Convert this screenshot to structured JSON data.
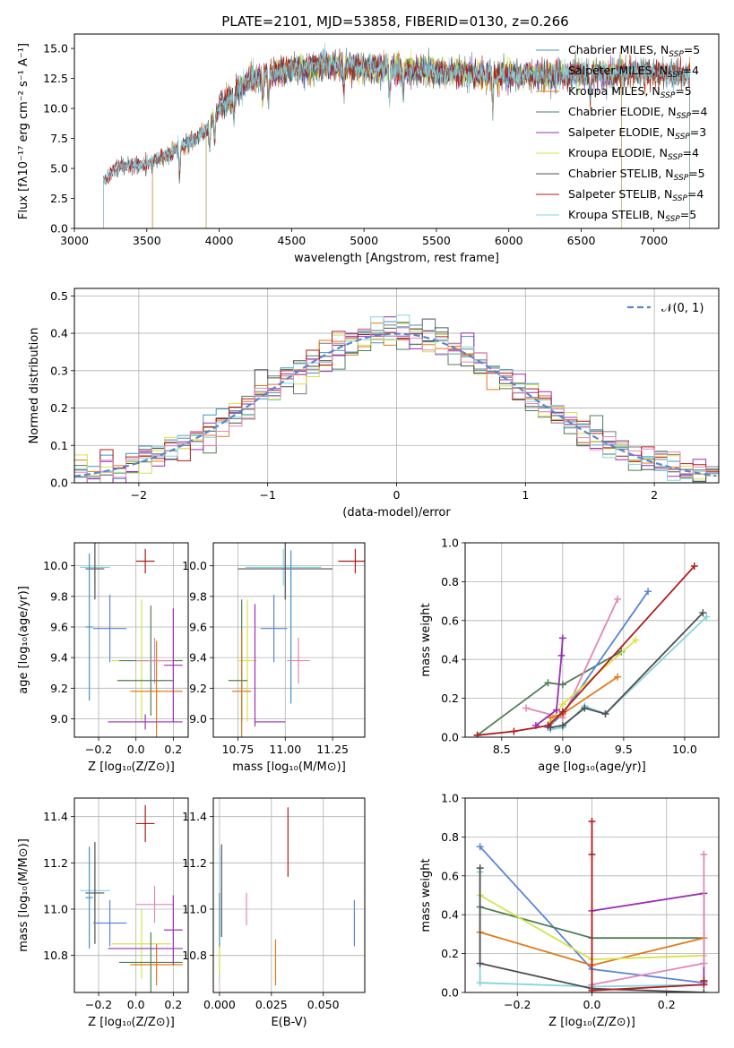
{
  "figure_title": "PLATE=2101, MJD=53858, FIBERID=0130, z=0.266",
  "colors": {
    "Chabrier MILES": "#4a90c2",
    "Salpeter MILES": "#7a7a7a",
    "Kroupa MILES": "#e07b1a",
    "Chabrier ELODIE": "#4f7f55",
    "Salpeter ELODIE": "#9b2fb5",
    "Kroupa ELODIE": "#d6e34a",
    "Chabrier STELIB": "#505050",
    "Salpeter STELIB": "#b01c1c",
    "Kroupa STELIB": "#86d3e0",
    "pink": "#e088b6",
    "blue": "#5b85d8",
    "gaussian": "#5a86c9"
  },
  "chart_data": [
    {
      "id": "spectrum",
      "type": "line",
      "title": "PLATE=2101, MJD=53858, FIBERID=0130, z=0.266",
      "xlabel": "wavelength [Angstrom, rest frame]",
      "ylabel": "Flux [fλ10⁻¹⁷ erg cm⁻² s⁻¹ A⁻¹]",
      "xlim": [
        3000,
        7450
      ],
      "ylim": [
        0,
        16.2
      ],
      "xticks": [
        3000,
        3500,
        4000,
        4500,
        5000,
        5500,
        6000,
        6500,
        7000
      ],
      "yticks": [
        0.0,
        2.5,
        5.0,
        7.5,
        10.0,
        12.5,
        15.0
      ],
      "grid": false,
      "legend_position": "top-right",
      "legend": [
        {
          "label": "Chabrier MILES, N",
          "sub": "SSP",
          "tail": "=5",
          "color": "#4a90c2"
        },
        {
          "label": "Salpeter MILES, N",
          "sub": "SSP",
          "tail": "=4",
          "color": "#7a7a7a"
        },
        {
          "label": "Kroupa MILES, N",
          "sub": "SSP",
          "tail": "=5",
          "color": "#e07b1a"
        },
        {
          "label": "Chabrier ELODIE, N",
          "sub": "SSP",
          "tail": "=4",
          "color": "#4f7f55"
        },
        {
          "label": "Salpeter ELODIE, N",
          "sub": "SSP",
          "tail": "=3",
          "color": "#9b2fb5"
        },
        {
          "label": "Kroupa ELODIE, N",
          "sub": "SSP",
          "tail": "=4",
          "color": "#d6e34a"
        },
        {
          "label": "Chabrier STELIB, N",
          "sub": "SSP",
          "tail": "=5",
          "color": "#505050"
        },
        {
          "label": "Salpeter STELIB, N",
          "sub": "SSP",
          "tail": "=4",
          "color": "#b01c1c"
        },
        {
          "label": "Kroupa STELIB, N",
          "sub": "SSP",
          "tail": "=5",
          "color": "#86d3e0"
        }
      ],
      "continuum_anchors": [
        [
          3200,
          4.0
        ],
        [
          3300,
          5.2
        ],
        [
          3500,
          5.3
        ],
        [
          3700,
          6.5
        ],
        [
          3900,
          8.0
        ],
        [
          4000,
          10.0
        ],
        [
          4200,
          12.3
        ],
        [
          4500,
          13.3
        ],
        [
          4800,
          13.6
        ],
        [
          5000,
          13.4
        ],
        [
          5300,
          13.2
        ],
        [
          5600,
          13.0
        ],
        [
          5900,
          12.8
        ],
        [
          6200,
          12.8
        ],
        [
          6600,
          12.9
        ],
        [
          6900,
          13.0
        ],
        [
          7250,
          12.8
        ]
      ],
      "series_extent": {
        "Chabrier MILES": [
          3540,
          7250
        ],
        "Salpeter MILES": [
          3540,
          7250
        ],
        "Kroupa MILES": [
          3540,
          7250
        ],
        "Chabrier ELODIE": [
          3910,
          6780
        ],
        "Salpeter ELODIE": [
          3910,
          6780
        ],
        "Kroupa ELODIE": [
          3910,
          6780
        ],
        "Chabrier STELIB": [
          3200,
          7250
        ],
        "Salpeter STELIB": [
          3200,
          7250
        ],
        "Kroupa STELIB": [
          3200,
          7250
        ]
      }
    },
    {
      "id": "residuals",
      "type": "line",
      "xlabel": "(data-model)/error",
      "ylabel": "Normed distribution",
      "xlim": [
        -2.5,
        2.5
      ],
      "ylim": [
        0,
        0.52
      ],
      "xticks": [
        -2,
        -1,
        0,
        1,
        2
      ],
      "yticks": [
        0.0,
        0.1,
        0.2,
        0.3,
        0.4,
        0.5
      ],
      "grid": true,
      "legend_position": "top-right",
      "legend": [
        {
          "label": "𝒩(0, 1)",
          "color": "#5a86c9",
          "style": "dashed"
        }
      ],
      "bin_width": 0.1,
      "gaussian": {
        "mean": 0,
        "sigma": 1
      }
    },
    {
      "id": "age_vs_Z",
      "type": "errorbar",
      "xlabel": "Z [log₁₀(Z/Z⊙)]",
      "ylabel": "age  [log₁₀(age/yr)]",
      "xlim": [
        -0.33,
        0.28
      ],
      "ylim": [
        8.88,
        10.15
      ],
      "xticks": [
        -0.2,
        0.0,
        0.2
      ],
      "xticklabels": [
        "−0.2",
        "0.0",
        "0.2"
      ],
      "yticks": [
        9.0,
        9.2,
        9.4,
        9.6,
        9.8,
        10.0
      ],
      "grid": true,
      "points": [
        {
          "x": 0.05,
          "y": 10.03,
          "xerr": 0.05,
          "yerr": 0.08,
          "color": "#b01c1c"
        },
        {
          "x": -0.22,
          "y": 9.99,
          "xerr": 0.08,
          "yerr": 0.12,
          "color": "#86d3e0"
        },
        {
          "x": -0.22,
          "y": 9.98,
          "xerr": 0.05,
          "yerr": 0.2,
          "color": "#505050"
        },
        {
          "x": -0.14,
          "y": 9.59,
          "xerr": 0.09,
          "yerr": 0.22,
          "color": "#5b85d8"
        },
        {
          "x": -0.25,
          "y": 9.6,
          "xerr": 0.02,
          "yerr": 0.48,
          "color": "#4a90c2"
        },
        {
          "x": 0.03,
          "y": 9.38,
          "xerr": 0.16,
          "yerr": 0.4,
          "color": "#d6e34a"
        },
        {
          "x": 0.08,
          "y": 9.38,
          "xerr": 0.17,
          "yerr": 0.36,
          "color": "#4f7f55"
        },
        {
          "x": 0.11,
          "y": 9.18,
          "xerr": 0.14,
          "yerr": 0.33,
          "color": "#e07b1a"
        },
        {
          "x": 0.1,
          "y": 9.38,
          "xerr": 0.1,
          "yerr": 0.15,
          "color": "#e088b6"
        },
        {
          "x": 0.2,
          "y": 9.35,
          "xerr": 0.05,
          "yerr": 0.37,
          "color": "#9b2fb5"
        },
        {
          "x": 0.05,
          "y": 8.98,
          "xerr": 0.2,
          "yerr": 0.05,
          "color": "#9b2fb5"
        },
        {
          "x": 0.05,
          "y": 9.25,
          "xerr": 0.15,
          "yerr": 0.0,
          "color": "#4f7f55"
        }
      ]
    },
    {
      "id": "age_vs_mass",
      "type": "errorbar",
      "xlabel": "mass [log₁₀(M/M⊙)]",
      "ylabel": "",
      "xlim": [
        10.62,
        11.42
      ],
      "ylim": [
        8.88,
        10.15
      ],
      "xticks": [
        10.75,
        11.0,
        11.25
      ],
      "xticklabels": [
        "10.75",
        "11.00",
        "11.25"
      ],
      "yticks": [
        9.0,
        9.2,
        9.4,
        9.6,
        9.8,
        10.0
      ],
      "grid": true,
      "points": [
        {
          "x": 11.37,
          "y": 10.03,
          "xerr": 0.09,
          "yerr": 0.08,
          "color": "#b01c1c"
        },
        {
          "x": 10.99,
          "y": 9.99,
          "xerr": 0.2,
          "yerr": 0.12,
          "color": "#86d3e0"
        },
        {
          "x": 11.0,
          "y": 9.98,
          "xerr": 0.25,
          "yerr": 0.2,
          "color": "#505050"
        },
        {
          "x": 10.94,
          "y": 9.59,
          "xerr": 0.07,
          "yerr": 0.22,
          "color": "#5b85d8"
        },
        {
          "x": 11.03,
          "y": 9.6,
          "xerr": 0.0,
          "yerr": 0.5,
          "color": "#4a90c2"
        },
        {
          "x": 10.8,
          "y": 9.38,
          "xerr": 0.05,
          "yerr": 0.4,
          "color": "#d6e34a"
        },
        {
          "x": 10.77,
          "y": 9.38,
          "xerr": 0.0,
          "yerr": 0.4,
          "color": "#4f7f55"
        },
        {
          "x": 10.77,
          "y": 9.18,
          "xerr": 0.05,
          "yerr": 0.4,
          "color": "#e07b1a"
        },
        {
          "x": 11.07,
          "y": 9.38,
          "xerr": 0.06,
          "yerr": 0.15,
          "color": "#e088b6"
        },
        {
          "x": 10.84,
          "y": 9.35,
          "xerr": 0.0,
          "yerr": 0.4,
          "color": "#9b2fb5"
        },
        {
          "x": 10.92,
          "y": 8.98,
          "xerr": 0.08,
          "yerr": 0.0,
          "color": "#9b2fb5"
        },
        {
          "x": 10.75,
          "y": 9.25,
          "xerr": 0.05,
          "yerr": 0.0,
          "color": "#4f7f55"
        }
      ]
    },
    {
      "id": "massweight_vs_age",
      "type": "line",
      "xlabel": "age  [log₁₀(age/yr)]",
      "ylabel": "mass weight",
      "xlim": [
        8.2,
        10.28
      ],
      "ylim": [
        0,
        1.0
      ],
      "xticks": [
        8.5,
        9.0,
        9.5,
        10.0
      ],
      "yticks": [
        0.0,
        0.2,
        0.4,
        0.6,
        0.8,
        1.0
      ],
      "grid": true,
      "series": [
        {
          "color": "#4f7f55",
          "x": [
            8.3,
            8.88,
            9.0,
            9.48
          ],
          "y": [
            0.01,
            0.28,
            0.27,
            0.44
          ]
        },
        {
          "color": "#5b85d8",
          "x": [
            8.88,
            9.0,
            9.7
          ],
          "y": [
            0.05,
            0.12,
            0.75
          ]
        },
        {
          "color": "#e088b6",
          "x": [
            8.7,
            9.0,
            9.45
          ],
          "y": [
            0.15,
            0.1,
            0.71
          ]
        },
        {
          "color": "#d6e34a",
          "x": [
            8.9,
            9.0,
            9.6
          ],
          "y": [
            0.08,
            0.17,
            0.5
          ]
        },
        {
          "color": "#e07b1a",
          "x": [
            8.9,
            9.0,
            9.45
          ],
          "y": [
            0.1,
            0.12,
            0.31
          ]
        },
        {
          "color": "#9b2fb5",
          "x": [
            8.78,
            8.95,
            8.99,
            9.0
          ],
          "y": [
            0.06,
            0.14,
            0.42,
            0.51
          ]
        },
        {
          "color": "#86d3e0",
          "x": [
            8.9,
            9.0,
            9.18,
            9.35,
            10.18
          ],
          "y": [
            0.04,
            0.05,
            0.16,
            0.12,
            0.62
          ]
        },
        {
          "color": "#505050",
          "x": [
            8.9,
            9.0,
            9.18,
            9.35,
            10.15
          ],
          "y": [
            0.05,
            0.06,
            0.15,
            0.12,
            0.64
          ]
        },
        {
          "color": "#b01c1c",
          "x": [
            8.3,
            8.6,
            8.88,
            9.0,
            10.08
          ],
          "y": [
            0.01,
            0.03,
            0.06,
            0.13,
            0.88
          ]
        }
      ]
    },
    {
      "id": "mass_vs_Z",
      "type": "errorbar",
      "xlabel": "Z [log₁₀(Z/Z⊙)]",
      "ylabel": "mass [log₁₀(M/M⊙)]",
      "xlim": [
        -0.33,
        0.28
      ],
      "ylim": [
        10.64,
        11.48
      ],
      "xticks": [
        -0.2,
        0.0,
        0.2
      ],
      "xticklabels": [
        "−0.2",
        "0.0",
        "0.2"
      ],
      "yticks": [
        10.8,
        11.0,
        11.2,
        11.4
      ],
      "grid": true,
      "points": [
        {
          "x": 0.05,
          "y": 11.37,
          "xerr": 0.05,
          "yerr": 0.08,
          "color": "#b01c1c"
        },
        {
          "x": -0.22,
          "y": 11.08,
          "xerr": 0.08,
          "yerr": 0.1,
          "color": "#86d3e0"
        },
        {
          "x": -0.22,
          "y": 11.07,
          "xerr": 0.05,
          "yerr": 0.22,
          "color": "#505050"
        },
        {
          "x": -0.14,
          "y": 10.94,
          "xerr": 0.09,
          "yerr": 0.1,
          "color": "#5b85d8"
        },
        {
          "x": -0.25,
          "y": 11.05,
          "xerr": 0.02,
          "yerr": 0.22,
          "color": "#4a90c2"
        },
        {
          "x": 0.03,
          "y": 10.85,
          "xerr": 0.16,
          "yerr": 0.15,
          "color": "#d6e34a"
        },
        {
          "x": 0.08,
          "y": 10.77,
          "xerr": 0.17,
          "yerr": 0.13,
          "color": "#4f7f55"
        },
        {
          "x": 0.11,
          "y": 10.76,
          "xerr": 0.14,
          "yerr": 0.09,
          "color": "#e07b1a"
        },
        {
          "x": 0.1,
          "y": 11.02,
          "xerr": 0.1,
          "yerr": 0.08,
          "color": "#e088b6"
        },
        {
          "x": 0.2,
          "y": 10.91,
          "xerr": 0.05,
          "yerr": 0.15,
          "color": "#9b2fb5"
        },
        {
          "x": 0.05,
          "y": 10.83,
          "xerr": 0.2,
          "yerr": 0.0,
          "color": "#9b2fb5"
        }
      ]
    },
    {
      "id": "mass_vs_ebv",
      "type": "errorbar",
      "xlabel": "E(B-V)",
      "ylabel": "",
      "xlim": [
        -0.003,
        0.07
      ],
      "ylim": [
        10.64,
        11.48
      ],
      "xticks": [
        0.0,
        0.025,
        0.05
      ],
      "xticklabels": [
        "0.000",
        "0.025",
        "0.050"
      ],
      "yticks": [
        10.8,
        11.0,
        11.2,
        11.4
      ],
      "grid": true,
      "points": [
        {
          "x": 0.033,
          "y": 11.29,
          "xerr": 0.0,
          "yerr": 0.15,
          "color": "#b01c1c"
        },
        {
          "x": 0.001,
          "y": 11.08,
          "xerr": 0.0,
          "yerr": 0.2,
          "color": "#505050"
        },
        {
          "x": 0.0,
          "y": 10.98,
          "xerr": 0.0,
          "yerr": 0.28,
          "color": "#86d3e0"
        },
        {
          "x": 0.0,
          "y": 10.95,
          "xerr": 0.0,
          "yerr": 0.12,
          "color": "#4a90c2"
        },
        {
          "x": 0.0,
          "y": 10.78,
          "xerr": 0.0,
          "yerr": 0.06,
          "color": "#d6e34a"
        },
        {
          "x": 0.013,
          "y": 11.0,
          "xerr": 0.0,
          "yerr": 0.07,
          "color": "#e088b6"
        },
        {
          "x": 0.027,
          "y": 10.77,
          "xerr": 0.0,
          "yerr": 0.1,
          "color": "#e07b1a"
        },
        {
          "x": 0.065,
          "y": 10.94,
          "xerr": 0.0,
          "yerr": 0.1,
          "color": "#5b85d8"
        }
      ]
    },
    {
      "id": "massweight_vs_Z",
      "type": "line",
      "xlabel": "Z [log₁₀(Z/Z⊙)]",
      "ylabel": "mass weight",
      "xlim": [
        -0.34,
        0.34
      ],
      "ylim": [
        0,
        1.0
      ],
      "xticks": [
        -0.2,
        0.0,
        0.2
      ],
      "xticklabels": [
        "−0.2",
        "0.0",
        "0.2"
      ],
      "yticks": [
        0.0,
        0.2,
        0.4,
        0.6,
        0.8,
        1.0
      ],
      "grid": true,
      "series": [
        {
          "color": "#5b85d8",
          "x": [
            -0.3,
            0.0,
            0.3
          ],
          "y": [
            0.75,
            0.12,
            0.05
          ]
        },
        {
          "color": "#4f7f55",
          "x": [
            -0.3,
            0.0,
            0.3
          ],
          "y": [
            0.44,
            0.28,
            0.28
          ]
        },
        {
          "color": "#e07b1a",
          "x": [
            -0.3,
            0.0,
            0.3
          ],
          "y": [
            0.31,
            0.14,
            0.28
          ]
        },
        {
          "color": "#d6e34a",
          "x": [
            -0.3,
            0.0,
            0.3
          ],
          "y": [
            0.5,
            0.17,
            0.19
          ]
        },
        {
          "color": "#9b2fb5",
          "x": [
            0.0,
            0.3,
            0.3
          ],
          "y": [
            0.42,
            0.51,
            0.06
          ]
        },
        {
          "color": "#e088b6",
          "x": [
            0.0,
            0.3,
            0.3
          ],
          "y": [
            0.04,
            0.15,
            0.71
          ]
        },
        {
          "color": "#86d3e0",
          "x": [
            -0.3,
            -0.3,
            0.0,
            0.3
          ],
          "y": [
            0.62,
            0.05,
            0.03,
            0.04
          ]
        },
        {
          "color": "#505050",
          "x": [
            -0.3,
            -0.3,
            0.0,
            0.3
          ],
          "y": [
            0.64,
            0.15,
            0.02,
            0.0
          ]
        },
        {
          "color": "#b01c1c",
          "x": [
            0.0,
            0.0,
            0.0,
            0.3,
            0.3
          ],
          "y": [
            0.88,
            0.71,
            0.01,
            0.04,
            0.06
          ]
        }
      ]
    }
  ]
}
